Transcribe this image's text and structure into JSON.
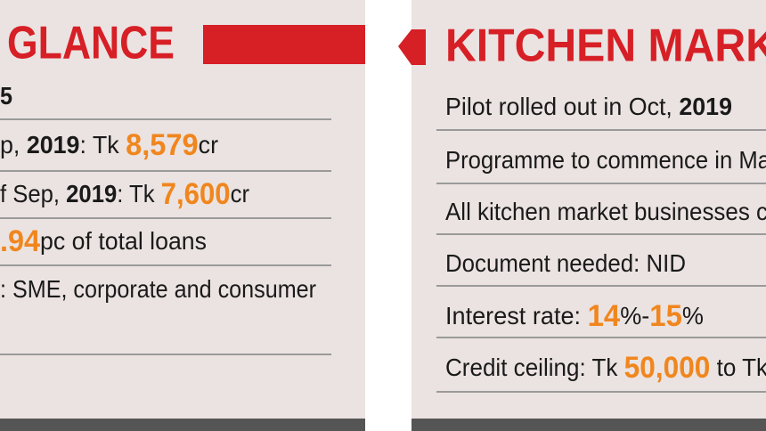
{
  "left": {
    "title": "GLANCE",
    "rows": [
      [
        "5"
      ],
      [
        "p, ",
        "2019",
        ": Tk ",
        "8,579",
        "cr"
      ],
      [
        "f Sep, ",
        "2019",
        ": Tk ",
        "7,600",
        "cr"
      ],
      [
        ".94",
        "pc of total loans"
      ],
      [
        ": SME, corporate and consumer"
      ]
    ]
  },
  "right": {
    "title": "KITCHEN MARK",
    "rows": [
      [
        "Pilot rolled out in Oct, ",
        "2019"
      ],
      [
        "Programme to commence in Ma"
      ],
      [
        "All kitchen market businesses c"
      ],
      [
        "Document needed: NID"
      ],
      [
        "Interest rate: ",
        "14",
        "%-",
        "15",
        "%"
      ],
      [
        "Credit ceiling: Tk ",
        "50,000",
        " to Tk"
      ]
    ]
  }
}
